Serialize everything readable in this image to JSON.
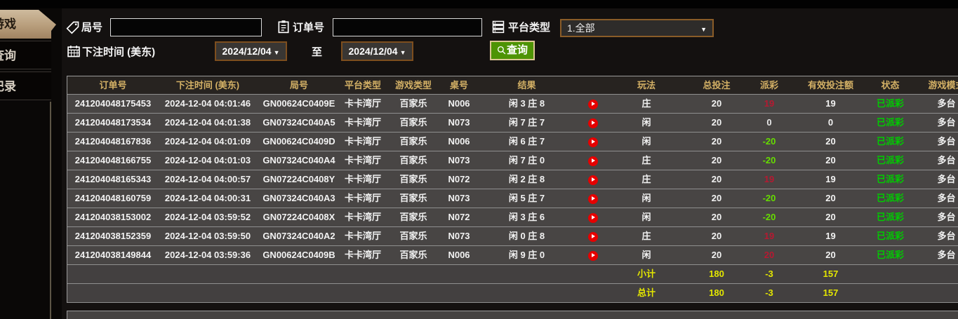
{
  "sidebar": {
    "tabs": [
      {
        "label": "游戏",
        "active": true
      },
      {
        "label": "查询",
        "active": false
      },
      {
        "label": "记录",
        "active": false
      }
    ]
  },
  "filters": {
    "round_label": "局号",
    "round_value": "",
    "order_label": "订单号",
    "order_value": "",
    "platform_label": "平台类型",
    "platform_value": "1.全部",
    "bet_time_label": "下注时间 (美东)",
    "date_from": "2024/12/04",
    "to_label": "至",
    "date_to": "2024/12/04",
    "search_label": "查询"
  },
  "icons": {
    "round": "tag-icon",
    "order": "clipboard-icon",
    "platform": "server-list-icon",
    "bet_time": "calendar-icon",
    "search": "magnifier-icon",
    "result_replay": "play-icon",
    "dropdown": "caret-down-icon"
  },
  "table": {
    "headers": [
      "订单号",
      "下注时间 (美东)",
      "局号",
      "平台类型",
      "游戏类型",
      "桌号",
      "结果",
      "",
      "玩法",
      "总投注",
      "派彩",
      "有效投注额",
      "状态",
      "游戏模式"
    ],
    "rows": [
      {
        "order_no": "241204048175453",
        "bet_time": "2024-12-04 04:01:46",
        "round_no": "GN00624C0409E",
        "platform": "卡卡湾厅",
        "game_type": "百家乐",
        "table_no": "N006",
        "result": "闲 3 庄 8",
        "play": "庄",
        "total_bet": "20",
        "payout": "19",
        "valid_bet": "19",
        "status": "已派彩",
        "mode": "多台"
      },
      {
        "order_no": "241204048173534",
        "bet_time": "2024-12-04 04:01:38",
        "round_no": "GN07324C040A5",
        "platform": "卡卡湾厅",
        "game_type": "百家乐",
        "table_no": "N073",
        "result": "闲 7 庄 7",
        "play": "闲",
        "total_bet": "20",
        "payout": "0",
        "valid_bet": "0",
        "status": "已派彩",
        "mode": "多台"
      },
      {
        "order_no": "241204048167836",
        "bet_time": "2024-12-04 04:01:09",
        "round_no": "GN00624C0409D",
        "platform": "卡卡湾厅",
        "game_type": "百家乐",
        "table_no": "N006",
        "result": "闲 6 庄 7",
        "play": "闲",
        "total_bet": "20",
        "payout": "-20",
        "valid_bet": "20",
        "status": "已派彩",
        "mode": "多台"
      },
      {
        "order_no": "241204048166755",
        "bet_time": "2024-12-04 04:01:03",
        "round_no": "GN07324C040A4",
        "platform": "卡卡湾厅",
        "game_type": "百家乐",
        "table_no": "N073",
        "result": "闲 7 庄 0",
        "play": "庄",
        "total_bet": "20",
        "payout": "-20",
        "valid_bet": "20",
        "status": "已派彩",
        "mode": "多台"
      },
      {
        "order_no": "241204048165343",
        "bet_time": "2024-12-04 04:00:57",
        "round_no": "GN07224C0408Y",
        "platform": "卡卡湾厅",
        "game_type": "百家乐",
        "table_no": "N072",
        "result": "闲 2 庄 8",
        "play": "庄",
        "total_bet": "20",
        "payout": "19",
        "valid_bet": "19",
        "status": "已派彩",
        "mode": "多台"
      },
      {
        "order_no": "241204048160759",
        "bet_time": "2024-12-04 04:00:31",
        "round_no": "GN07324C040A3",
        "platform": "卡卡湾厅",
        "game_type": "百家乐",
        "table_no": "N073",
        "result": "闲 5 庄 7",
        "play": "闲",
        "total_bet": "20",
        "payout": "-20",
        "valid_bet": "20",
        "status": "已派彩",
        "mode": "多台"
      },
      {
        "order_no": "241204038153002",
        "bet_time": "2024-12-04 03:59:52",
        "round_no": "GN07224C0408X",
        "platform": "卡卡湾厅",
        "game_type": "百家乐",
        "table_no": "N072",
        "result": "闲 3 庄 6",
        "play": "闲",
        "total_bet": "20",
        "payout": "-20",
        "valid_bet": "20",
        "status": "已派彩",
        "mode": "多台"
      },
      {
        "order_no": "241204038152359",
        "bet_time": "2024-12-04 03:59:50",
        "round_no": "GN07324C040A2",
        "platform": "卡卡湾厅",
        "game_type": "百家乐",
        "table_no": "N073",
        "result": "闲 0 庄 8",
        "play": "庄",
        "total_bet": "20",
        "payout": "19",
        "valid_bet": "19",
        "status": "已派彩",
        "mode": "多台"
      },
      {
        "order_no": "241204038149844",
        "bet_time": "2024-12-04 03:59:36",
        "round_no": "GN00624C0409B",
        "platform": "卡卡湾厅",
        "game_type": "百家乐",
        "table_no": "N006",
        "result": "闲 9 庄 0",
        "play": "闲",
        "total_bet": "20",
        "payout": "20",
        "valid_bet": "20",
        "status": "已派彩",
        "mode": "多台"
      }
    ],
    "subtotal": {
      "label": "小计",
      "total_bet": "180",
      "payout": "-3",
      "valid_bet": "157"
    },
    "total": {
      "label": "总计",
      "total_bet": "180",
      "payout": "-3",
      "valid_bet": "157"
    }
  },
  "colors": {
    "accent_tan": "#bfa784",
    "header_gold": "#d3b065",
    "payout_win_red": "#b61931",
    "payout_loss_green": "#66dd00",
    "status_paid_green": "#00cc00",
    "totals_yellow": "#e3e600",
    "button_green": "#4e9404",
    "border_brown": "#7d4e1e"
  }
}
